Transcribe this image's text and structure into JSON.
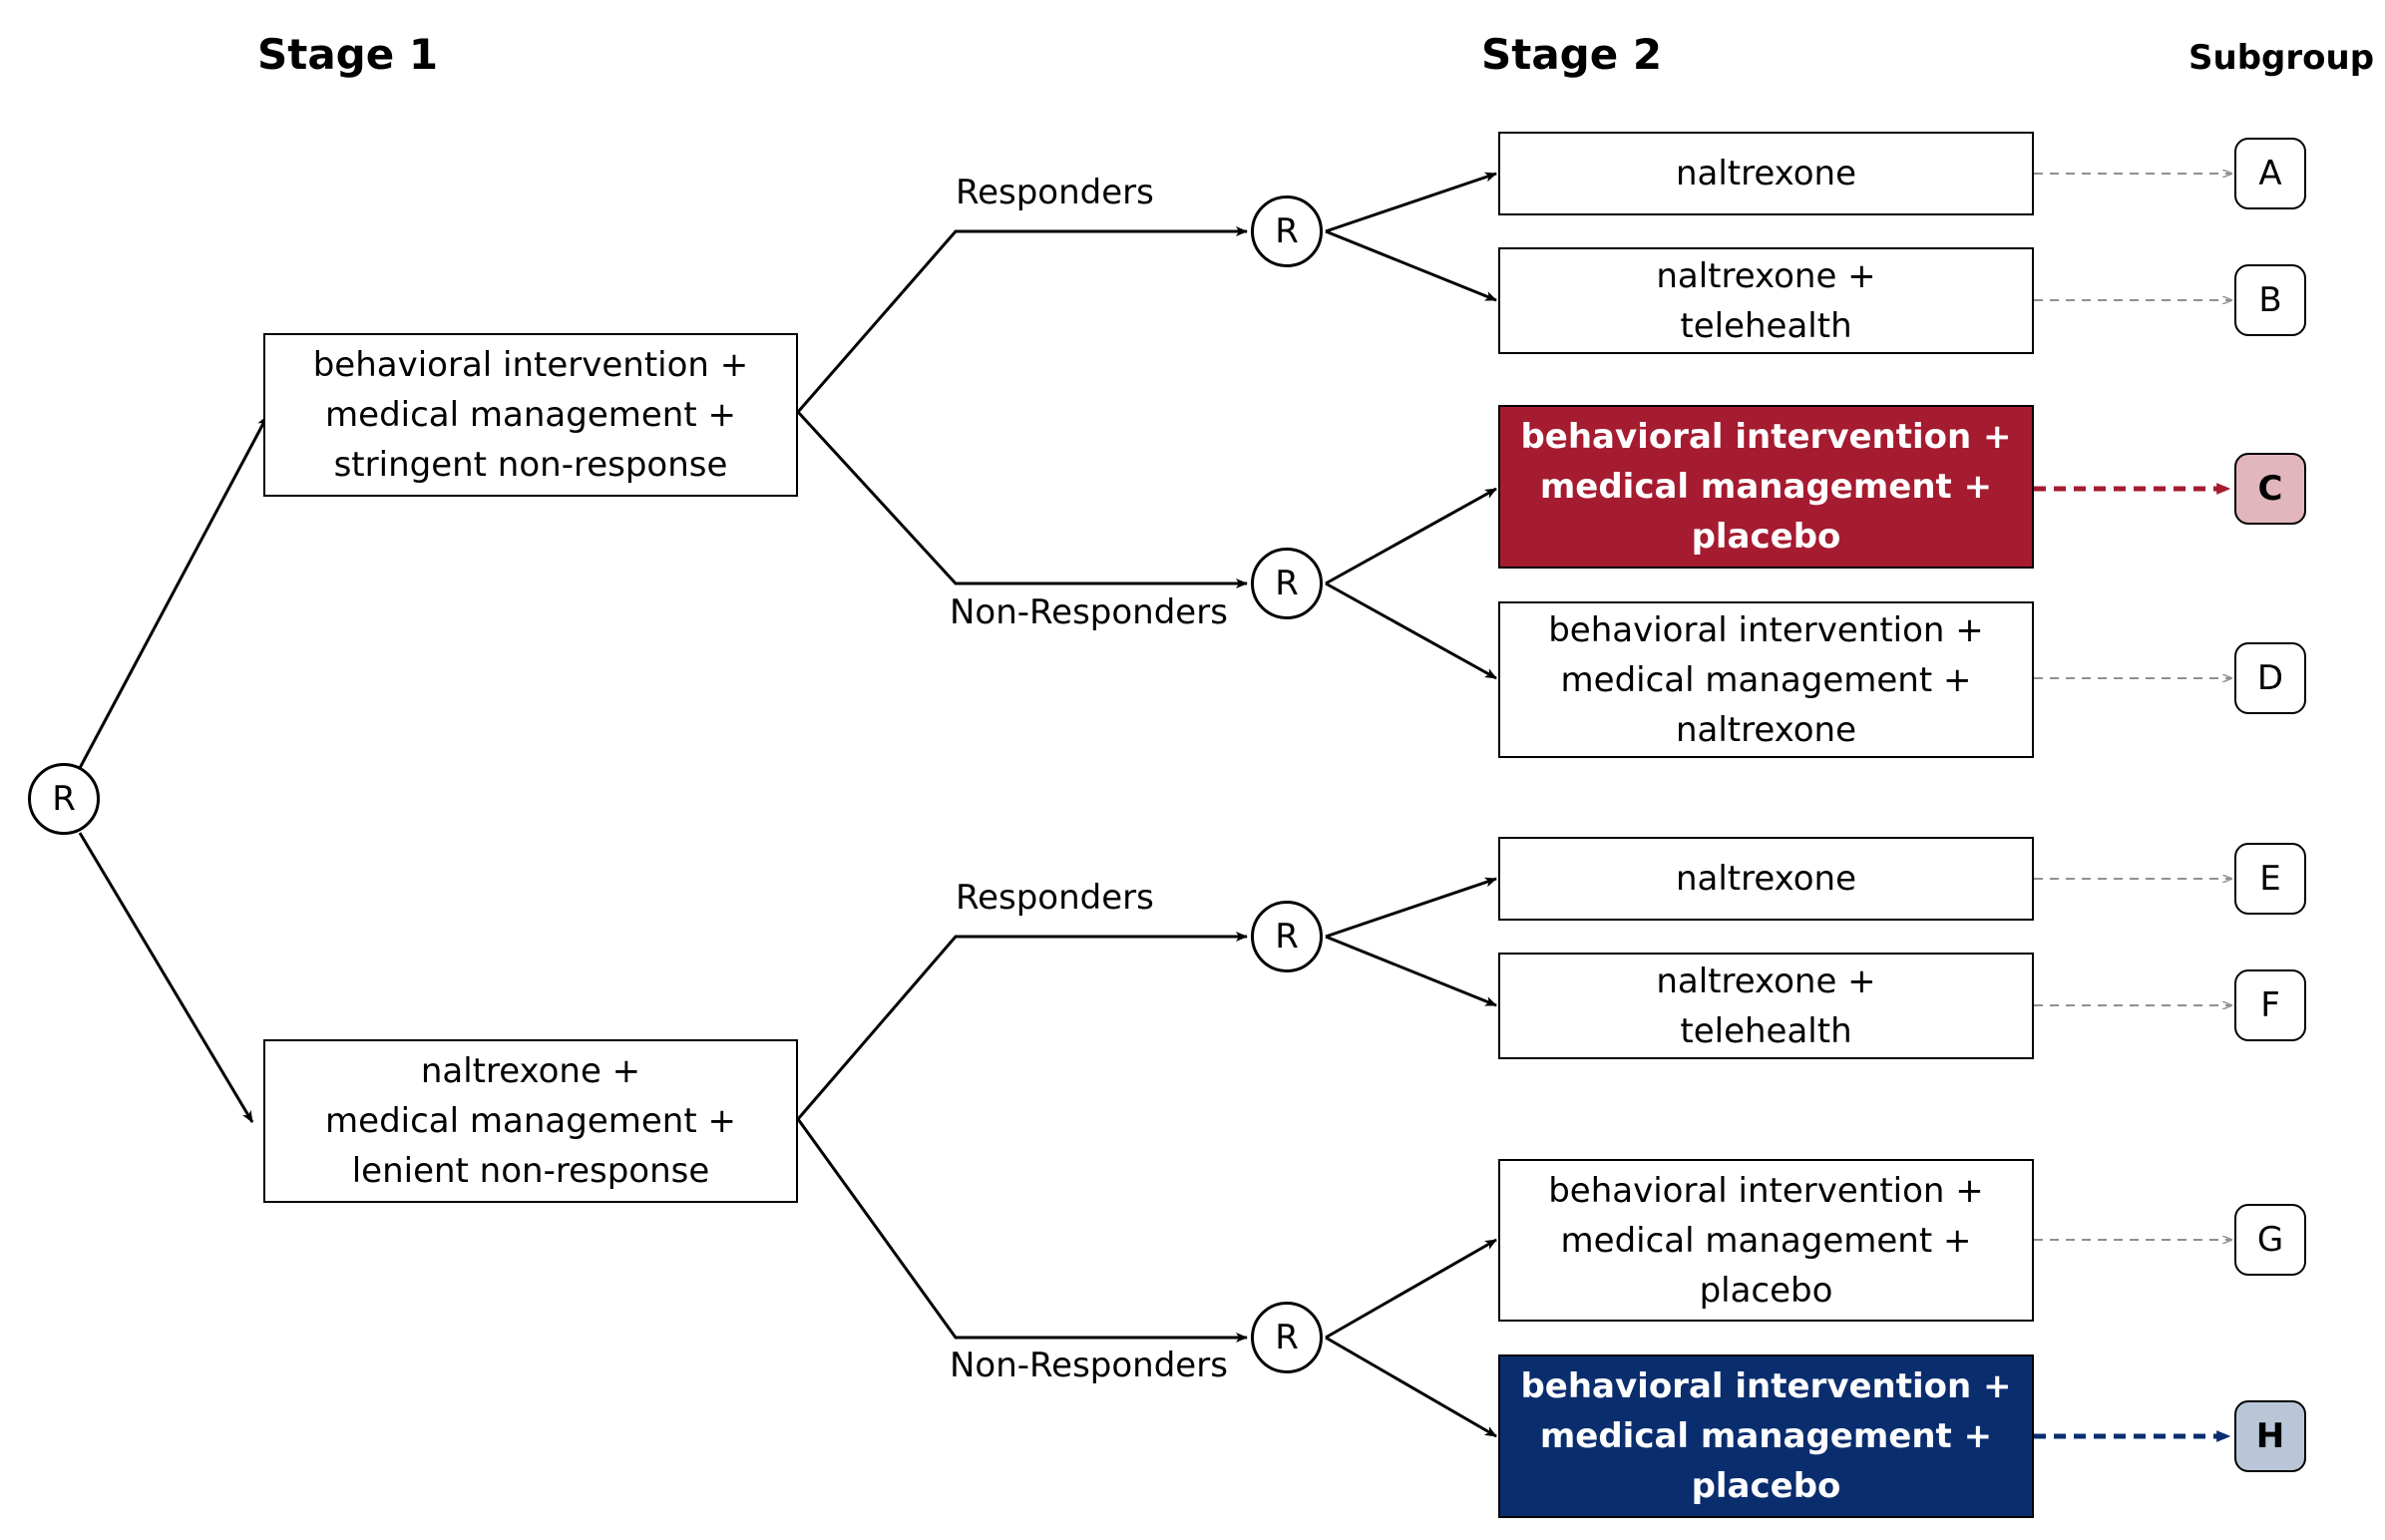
{
  "headers": {
    "stage1": "Stage 1",
    "stage2": "Stage 2",
    "subgroup": "Subgroup"
  },
  "randomization_label": "R",
  "branch_labels": {
    "responders": "Responders",
    "non_responders": "Non-Responders"
  },
  "stage1_arms": [
    {
      "lines": [
        "behavioral intervention +",
        "medical management +",
        "stringent non-response"
      ]
    },
    {
      "lines": [
        "naltrexone +",
        "medical management +",
        "lenient non-response"
      ]
    }
  ],
  "stage2_arms": [
    {
      "lines": [
        "naltrexone"
      ],
      "subgroup": "A",
      "highlight": false
    },
    {
      "lines": [
        "naltrexone +",
        "telehealth"
      ],
      "subgroup": "B",
      "highlight": false
    },
    {
      "lines": [
        "behavioral intervention +",
        "medical management +",
        "placebo"
      ],
      "subgroup": "C",
      "highlight": true,
      "color": "#a51b30",
      "subgroup_fill": "#e2b6bd"
    },
    {
      "lines": [
        "behavioral intervention +",
        "medical management +",
        "naltrexone"
      ],
      "subgroup": "D",
      "highlight": false
    },
    {
      "lines": [
        "naltrexone"
      ],
      "subgroup": "E",
      "highlight": false
    },
    {
      "lines": [
        "naltrexone +",
        "telehealth"
      ],
      "subgroup": "F",
      "highlight": false
    },
    {
      "lines": [
        "behavioral intervention +",
        "medical management +",
        "placebo"
      ],
      "subgroup": "G",
      "highlight": false
    },
    {
      "lines": [
        "behavioral intervention +",
        "medical management +",
        "placebo"
      ],
      "subgroup": "H",
      "highlight": true,
      "color": "#0a2d6e",
      "subgroup_fill": "#b9c6d8"
    }
  ],
  "colors": {
    "line": "#000000",
    "dashed": "#909090"
  }
}
